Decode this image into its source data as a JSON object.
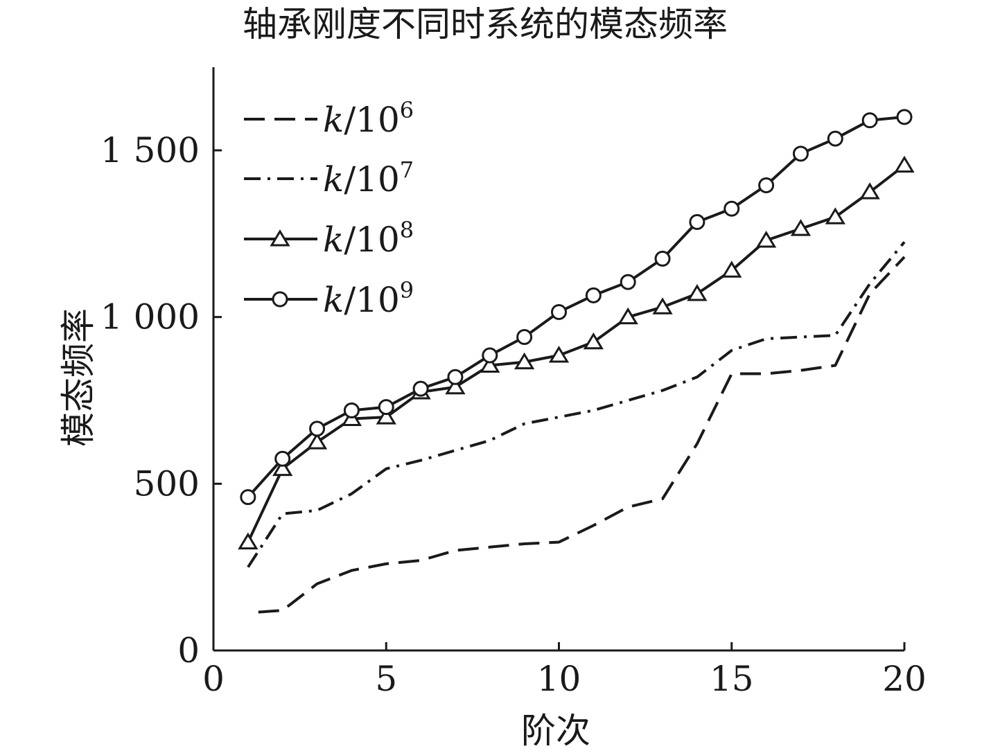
{
  "chart_data": {
    "type": "line",
    "title": "轴承刚度不同时系统的模态频率",
    "xlabel": "阶次",
    "ylabel": "模态频率",
    "xlim": [
      0,
      20
    ],
    "ylim": [
      0,
      1750
    ],
    "x_ticks": [
      0,
      5,
      10,
      15,
      20
    ],
    "x_tick_labels": [
      "0",
      "5",
      "10",
      "15",
      "20"
    ],
    "y_ticks": [
      0,
      500,
      1000,
      1500
    ],
    "y_tick_labels": [
      "0",
      "500",
      "1 000",
      "1 500"
    ],
    "grid": false,
    "legend_position": "top-left",
    "x": [
      1,
      2,
      3,
      4,
      5,
      6,
      7,
      8,
      9,
      10,
      11,
      12,
      13,
      14,
      15,
      16,
      17,
      18,
      19,
      20
    ],
    "series": [
      {
        "name": "k/10⁶",
        "legend_base": "/10",
        "legend_exp": "6",
        "style": "dashed",
        "marker": "none",
        "color": "#1a1a1a",
        "x": [
          1.3,
          2,
          3,
          4,
          5,
          6,
          7,
          8,
          9,
          10,
          11,
          12,
          13,
          14,
          15,
          16,
          17,
          18,
          19,
          20
        ],
        "values": [
          115,
          120,
          200,
          240,
          260,
          270,
          300,
          310,
          320,
          325,
          375,
          430,
          455,
          620,
          830,
          830,
          840,
          855,
          1070,
          1180
        ]
      },
      {
        "name": "k/10⁷",
        "legend_base": "/10",
        "legend_exp": "7",
        "style": "dashdot",
        "marker": "none",
        "color": "#1a1a1a",
        "values": [
          250,
          410,
          420,
          470,
          545,
          570,
          600,
          630,
          680,
          700,
          720,
          750,
          780,
          820,
          900,
          935,
          940,
          945,
          1100,
          1225
        ]
      },
      {
        "name": "k/10⁸",
        "legend_base": "/10",
        "legend_exp": "8",
        "style": "solid",
        "marker": "triangle",
        "color": "#1a1a1a",
        "values": [
          325,
          545,
          625,
          695,
          700,
          775,
          790,
          855,
          865,
          885,
          925,
          1000,
          1030,
          1070,
          1140,
          1230,
          1265,
          1300,
          1375,
          1455
        ]
      },
      {
        "name": "k/10⁹",
        "legend_base": "/10",
        "legend_exp": "9",
        "style": "solid",
        "marker": "circle",
        "color": "#1a1a1a",
        "values": [
          460,
          575,
          665,
          720,
          730,
          785,
          820,
          885,
          940,
          1015,
          1065,
          1105,
          1175,
          1285,
          1325,
          1395,
          1490,
          1535,
          1590,
          1600
        ]
      }
    ]
  }
}
